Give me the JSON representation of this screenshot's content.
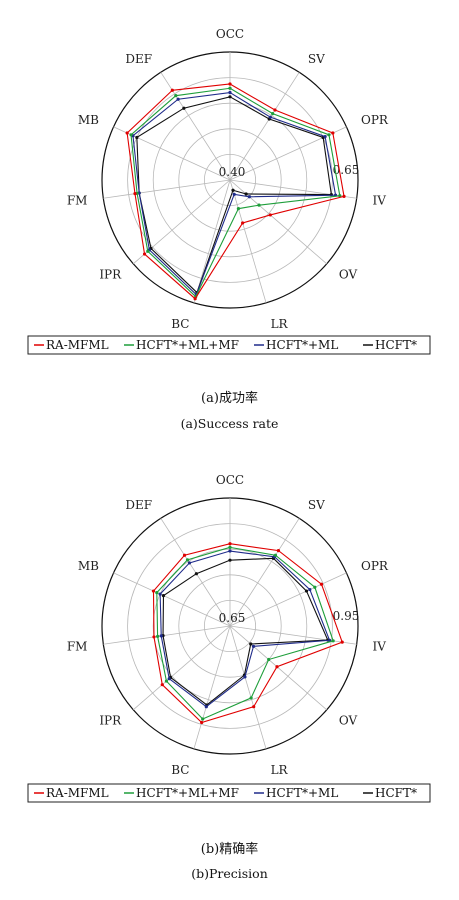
{
  "categories": [
    "OCC",
    "SV",
    "OPR",
    "IV",
    "OV",
    "LR",
    "BC",
    "IPR",
    "FM",
    "MB",
    "DEF"
  ],
  "series_styles": [
    {
      "name": "RA-MFML",
      "color": "#e00000"
    },
    {
      "name": "HCFT*+ML+MF",
      "color": "#1e9e3a"
    },
    {
      "name": "HCFT*+ML",
      "color": "#1f2b8a"
    },
    {
      "name": "HCFT*",
      "color": "#111111"
    }
  ],
  "chart_data": [
    {
      "type": "radar",
      "caption_cn": "(a)成功率",
      "caption_en": "(a)Success rate",
      "categories": [
        "OCC",
        "SV",
        "OPR",
        "IV",
        "OV",
        "LR",
        "BC",
        "IPR",
        "FM",
        "MB",
        "DEF"
      ],
      "rmin": 0.4,
      "rmax": 0.7,
      "tick_labels": [
        "0.40",
        "0.65"
      ],
      "series": [
        {
          "name": "RA-MFML",
          "values": [
            0.625,
            0.595,
            0.665,
            0.67,
            0.525,
            0.505,
            0.69,
            0.665,
            0.625,
            0.665,
            0.65
          ]
        },
        {
          "name": "HCFT*+ML+MF",
          "values": [
            0.615,
            0.585,
            0.655,
            0.66,
            0.49,
            0.47,
            0.685,
            0.655,
            0.62,
            0.655,
            0.635
          ]
        },
        {
          "name": "HCFT*+ML",
          "values": [
            0.605,
            0.575,
            0.645,
            0.65,
            0.46,
            0.435,
            0.68,
            0.65,
            0.615,
            0.65,
            0.625
          ]
        },
        {
          "name": "HCFT*",
          "values": [
            0.595,
            0.57,
            0.64,
            0.64,
            0.45,
            0.425,
            0.675,
            0.645,
            0.615,
            0.64,
            0.6
          ]
        }
      ],
      "legend": [
        "RA-MFML",
        "HCFT*+ML+MF",
        "HCFT*+ML",
        "HCFT*"
      ]
    },
    {
      "type": "radar",
      "caption_cn": "(b)精确率",
      "caption_en": "(b)Precision",
      "categories": [
        "OCC",
        "SV",
        "OPR",
        "IV",
        "OV",
        "LR",
        "BC",
        "IPR",
        "FM",
        "MB",
        "DEF"
      ],
      "rmin": 0.65,
      "rmax": 1.0,
      "tick_labels": [
        "0.65",
        "0.95"
      ],
      "series": [
        {
          "name": "RA-MFML",
          "values": [
            0.875,
            0.895,
            0.925,
            0.96,
            0.82,
            0.88,
            0.925,
            0.895,
            0.86,
            0.88,
            0.88
          ]
        },
        {
          "name": "HCFT*+ML+MF",
          "values": [
            0.865,
            0.88,
            0.905,
            0.935,
            0.79,
            0.855,
            0.915,
            0.88,
            0.85,
            0.87,
            0.865
          ]
        },
        {
          "name": "HCFT*+ML",
          "values": [
            0.855,
            0.875,
            0.89,
            0.925,
            0.735,
            0.795,
            0.88,
            0.87,
            0.84,
            0.86,
            0.855
          ]
        },
        {
          "name": "HCFT*",
          "values": [
            0.83,
            0.87,
            0.88,
            0.92,
            0.725,
            0.79,
            0.875,
            0.865,
            0.835,
            0.85,
            0.82
          ]
        }
      ],
      "legend": [
        "RA-MFML",
        "HCFT*+ML+MF",
        "HCFT*+ML",
        "HCFT*"
      ]
    }
  ]
}
